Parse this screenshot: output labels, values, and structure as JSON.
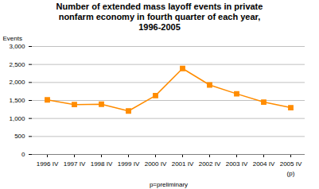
{
  "chart_data": {
    "type": "line",
    "title": "Number of extended mass layoff events in private\nnonfarm economy in fourth quarter of each year,\n1996-2005",
    "xlabel": "p=preliminary",
    "ylabel": "Events",
    "categories": [
      "1996 IV",
      "1997 IV",
      "1998 IV",
      "1999 IV",
      "2000 IV",
      "2001 IV",
      "2002 IV",
      "2003 IV",
      "2004 IV",
      "2005 IV"
    ],
    "values": [
      1516,
      1385,
      1395,
      1208,
      1635,
      2388,
      1930,
      1685,
      1455,
      1300
    ],
    "color": "#FF8C00",
    "marker": "square",
    "ylim": [
      0,
      3000
    ],
    "yticks": [
      0,
      500,
      {
        "value": 1000,
        "label": "1,000"
      },
      {
        "value": 1500,
        "label": "1,500"
      },
      {
        "value": 2000,
        "label": "2,000"
      },
      {
        "value": 2500,
        "label": "2,500"
      },
      {
        "value": 3000,
        "label": "3,000"
      }
    ],
    "grid": true,
    "annotations": [
      {
        "text": "(p)",
        "category": "2005 IV"
      }
    ]
  }
}
